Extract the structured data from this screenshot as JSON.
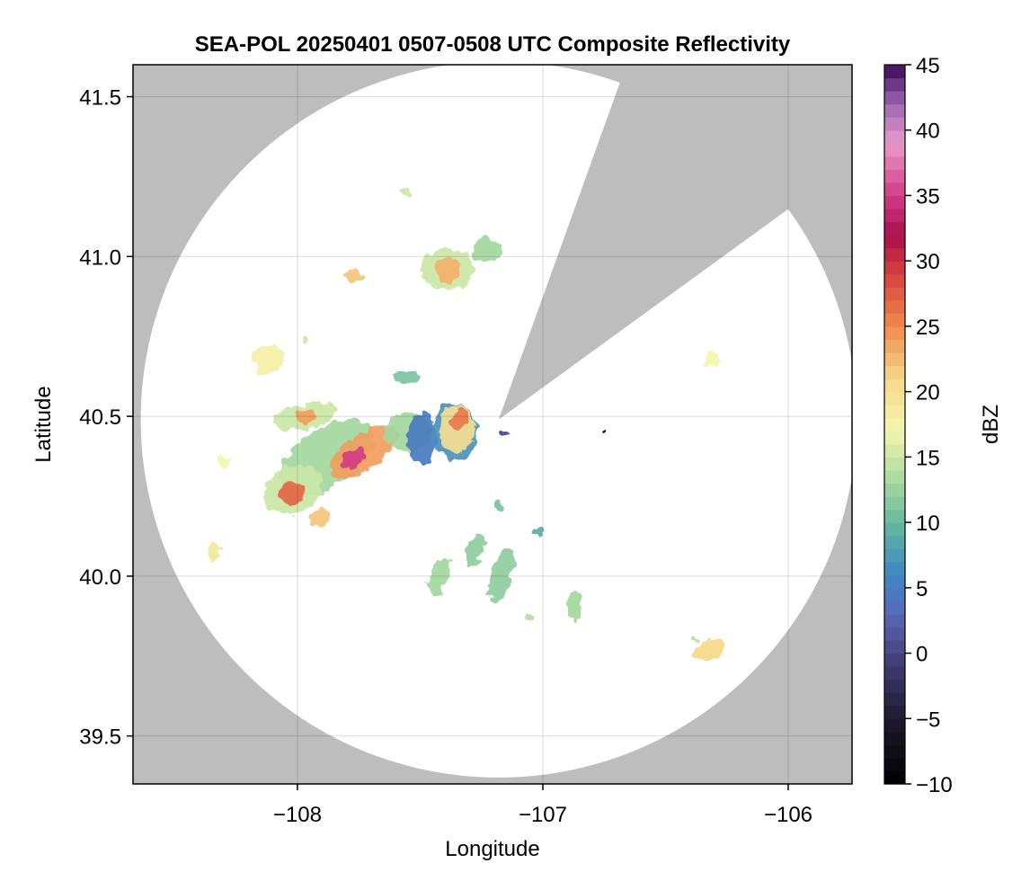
{
  "chart_data": {
    "type": "heatmap",
    "title": "SEA-POL 20250401 0507-0508 UTC Composite Reflectivity",
    "xlabel": "Longitude",
    "ylabel": "Latitude",
    "xlim": [
      -108.67,
      -105.74
    ],
    "ylim": [
      39.35,
      41.6
    ],
    "xticks": [
      -108,
      -107,
      -106
    ],
    "xtick_labels": [
      "−108",
      "−107",
      "−106"
    ],
    "yticks": [
      39.5,
      40.0,
      40.5,
      41.0,
      41.5
    ],
    "ytick_labels": [
      "39.5",
      "40.0",
      "40.5",
      "41.0",
      "41.5"
    ],
    "grid": true,
    "background_color": "#bdbdbd",
    "coverage_color": "#ffffff",
    "radar": {
      "center_lon": -107.18,
      "center_lat": 40.49,
      "range_lat_deg": 1.12,
      "blocked_sectors_deg_from_north": [
        [
          19.8,
          54.0
        ]
      ]
    },
    "colorbar": {
      "label": "dBZ",
      "range": [
        -10,
        45
      ],
      "step": 1,
      "ticks": [
        -10,
        -5,
        0,
        5,
        10,
        15,
        20,
        25,
        30,
        35,
        40,
        45
      ],
      "tick_labels": [
        "−10",
        "−5",
        "0",
        "5",
        "10",
        "15",
        "20",
        "25",
        "30",
        "35",
        "40",
        "45"
      ],
      "stops": [
        {
          "v": -10,
          "c": "#000000"
        },
        {
          "v": -5,
          "c": "#1e1a2c"
        },
        {
          "v": -1,
          "c": "#3e3a72"
        },
        {
          "v": 3,
          "c": "#5a68b8"
        },
        {
          "v": 6,
          "c": "#3f86c4"
        },
        {
          "v": 10,
          "c": "#66b99c"
        },
        {
          "v": 13,
          "c": "#a3d79e"
        },
        {
          "v": 17,
          "c": "#f3f6ad"
        },
        {
          "v": 21,
          "c": "#f5d88a"
        },
        {
          "v": 25,
          "c": "#f08a4e"
        },
        {
          "v": 29,
          "c": "#d8413e"
        },
        {
          "v": 32,
          "c": "#a80f4a"
        },
        {
          "v": 35,
          "c": "#d23c86"
        },
        {
          "v": 39,
          "c": "#e89ac8"
        },
        {
          "v": 42,
          "c": "#9c67b2"
        },
        {
          "v": 45,
          "c": "#3c0a55"
        }
      ]
    },
    "echoes": [
      {
        "lon": -107.88,
        "lat": 40.37,
        "rx": 0.22,
        "ry": 0.09,
        "rot": -35,
        "dbz": 13
      },
      {
        "lon": -107.73,
        "lat": 40.39,
        "rx": 0.16,
        "ry": 0.055,
        "rot": -35,
        "dbz": 24
      },
      {
        "lon": -107.77,
        "lat": 40.37,
        "rx": 0.06,
        "ry": 0.025,
        "rot": -35,
        "dbz": 35
      },
      {
        "lon": -108.02,
        "lat": 40.27,
        "rx": 0.13,
        "ry": 0.07,
        "rot": -30,
        "dbz": 15
      },
      {
        "lon": -108.02,
        "lat": 40.26,
        "rx": 0.05,
        "ry": 0.04,
        "rot": -30,
        "dbz": 27
      },
      {
        "lon": -107.97,
        "lat": 40.5,
        "rx": 0.13,
        "ry": 0.04,
        "rot": -10,
        "dbz": 15
      },
      {
        "lon": -107.97,
        "lat": 40.5,
        "rx": 0.04,
        "ry": 0.02,
        "rot": 0,
        "dbz": 24
      },
      {
        "lon": -107.55,
        "lat": 40.45,
        "rx": 0.1,
        "ry": 0.06,
        "rot": -10,
        "dbz": 13
      },
      {
        "lon": -107.49,
        "lat": 40.43,
        "rx": 0.06,
        "ry": 0.08,
        "rot": 0,
        "dbz": 5
      },
      {
        "lon": -107.36,
        "lat": 40.45,
        "rx": 0.09,
        "ry": 0.09,
        "rot": 0,
        "dbz": 7
      },
      {
        "lon": -107.35,
        "lat": 40.46,
        "rx": 0.07,
        "ry": 0.075,
        "rot": 0,
        "dbz": 20
      },
      {
        "lon": -107.34,
        "lat": 40.49,
        "rx": 0.035,
        "ry": 0.035,
        "rot": 0,
        "dbz": 26
      },
      {
        "lon": -107.91,
        "lat": 40.18,
        "rx": 0.04,
        "ry": 0.03,
        "rot": 0,
        "dbz": 22
      },
      {
        "lon": -107.39,
        "lat": 40.96,
        "rx": 0.11,
        "ry": 0.065,
        "rot": 0,
        "dbz": 15
      },
      {
        "lon": -107.39,
        "lat": 40.96,
        "rx": 0.05,
        "ry": 0.04,
        "rot": 0,
        "dbz": 23
      },
      {
        "lon": -107.23,
        "lat": 41.02,
        "rx": 0.06,
        "ry": 0.04,
        "rot": 0,
        "dbz": 13
      },
      {
        "lon": -107.77,
        "lat": 40.94,
        "rx": 0.04,
        "ry": 0.02,
        "rot": 0,
        "dbz": 22
      },
      {
        "lon": -108.12,
        "lat": 40.68,
        "rx": 0.06,
        "ry": 0.05,
        "rot": 0,
        "dbz": 18
      },
      {
        "lon": -107.55,
        "lat": 40.62,
        "rx": 0.05,
        "ry": 0.018,
        "rot": 0,
        "dbz": 11
      },
      {
        "lon": -106.32,
        "lat": 39.77,
        "rx": 0.06,
        "ry": 0.035,
        "rot": -30,
        "dbz": 21
      },
      {
        "lon": -106.31,
        "lat": 40.68,
        "rx": 0.03,
        "ry": 0.02,
        "rot": 0,
        "dbz": 17
      },
      {
        "lon": -107.17,
        "lat": 40.0,
        "rx": 0.04,
        "ry": 0.09,
        "rot": 15,
        "dbz": 12
      },
      {
        "lon": -107.42,
        "lat": 40.0,
        "rx": 0.035,
        "ry": 0.06,
        "rot": 20,
        "dbz": 13
      },
      {
        "lon": -106.87,
        "lat": 39.91,
        "rx": 0.03,
        "ry": 0.05,
        "rot": 0,
        "dbz": 13
      },
      {
        "lon": -108.34,
        "lat": 40.08,
        "rx": 0.025,
        "ry": 0.03,
        "rot": 0,
        "dbz": 19
      },
      {
        "lon": -107.02,
        "lat": 40.14,
        "rx": 0.025,
        "ry": 0.015,
        "rot": 0,
        "dbz": 9
      },
      {
        "lon": -107.28,
        "lat": 40.08,
        "rx": 0.03,
        "ry": 0.05,
        "rot": 20,
        "dbz": 12
      },
      {
        "lon": -107.16,
        "lat": 40.45,
        "rx": 0.018,
        "ry": 0.012,
        "rot": 0,
        "dbz": 0
      },
      {
        "lon": -106.75,
        "lat": 40.455,
        "rx": 0.008,
        "ry": 0.008,
        "rot": 45,
        "dbz": -10
      },
      {
        "lon": -108.3,
        "lat": 40.36,
        "rx": 0.03,
        "ry": 0.012,
        "rot": 0,
        "dbz": 17
      },
      {
        "lon": -107.97,
        "lat": 40.74,
        "rx": 0.015,
        "ry": 0.01,
        "rot": 0,
        "dbz": 15
      },
      {
        "lon": -107.18,
        "lat": 40.22,
        "rx": 0.02,
        "ry": 0.02,
        "rot": 0,
        "dbz": 11
      },
      {
        "lon": -107.55,
        "lat": 41.2,
        "rx": 0.03,
        "ry": 0.012,
        "rot": 0,
        "dbz": 15
      },
      {
        "lon": -107.05,
        "lat": 39.87,
        "rx": 0.015,
        "ry": 0.012,
        "rot": 0,
        "dbz": 14
      },
      {
        "lon": -106.38,
        "lat": 39.8,
        "rx": 0.012,
        "ry": 0.01,
        "rot": 0,
        "dbz": 14
      }
    ]
  }
}
